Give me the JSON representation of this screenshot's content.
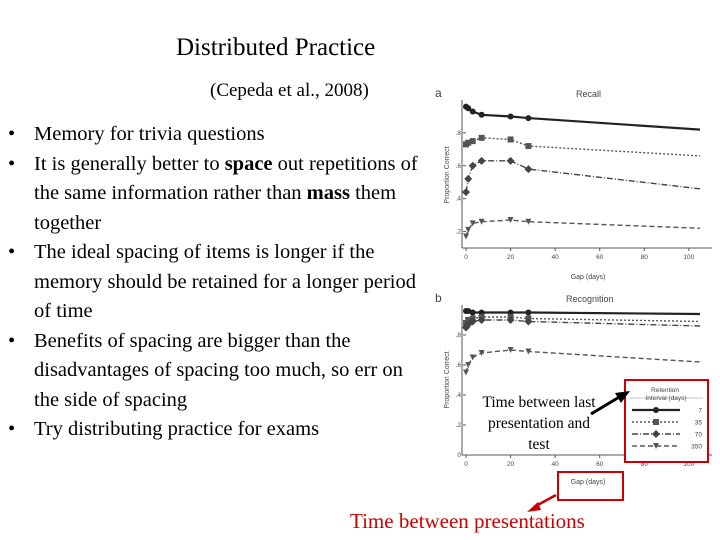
{
  "slide": {
    "title": "Distributed Practice",
    "subtitle": "(Cepeda et al., 2008)",
    "bullet_glyph": "•",
    "bullets": [
      {
        "pre": "Memory for trivia questions",
        "bold": "",
        "post": ""
      },
      {
        "pre": "It is generally better to ",
        "bold": "space",
        "post": " out repetitions of the same information rather than ",
        "bold2": "mass",
        "post2": " them together"
      },
      {
        "pre": "The ideal spacing of items is longer if the memory should be retained for a longer period of time",
        "bold": "",
        "post": ""
      },
      {
        "pre": "Benefits of spacing are bigger than the disadvantages of spacing too much, so err on the side of spacing",
        "bold": "",
        "post": ""
      },
      {
        "pre": "Try distributing practice for exams",
        "bold": "",
        "post": ""
      }
    ],
    "annotation_between": "Time between last presentation and test",
    "annotation_presentations": "Time between presentations"
  },
  "figure": {
    "panel_a_letter": "a",
    "panel_b_letter": "b",
    "panel_a_title": "Recall",
    "panel_b_title": "Recognition",
    "ylabel": "Proportion Correct",
    "xlabel": "Gap (days)",
    "legend_title": "Retention Interval (days)",
    "legend_entries": [
      "7",
      "35",
      "70",
      "350"
    ],
    "accent_color": "#cc0000"
  },
  "chart_data": [
    {
      "type": "line",
      "title": "Recall",
      "xlabel": "Gap (days)",
      "ylabel": "Proportion Correct",
      "x_ticks": [
        "0",
        "20",
        "40",
        "60",
        "80",
        "100"
      ],
      "y_ticks": [
        ".2",
        ".4",
        ".6",
        ".8"
      ],
      "xlim": [
        0,
        105
      ],
      "ylim": [
        0.1,
        1.0
      ],
      "series": [
        {
          "name": "7",
          "x": [
            0,
            1,
            3,
            7,
            20,
            28,
            105
          ],
          "y": [
            0.96,
            0.95,
            0.93,
            0.91,
            0.9,
            0.89,
            0.82
          ]
        },
        {
          "name": "35",
          "x": [
            0,
            1,
            3,
            7,
            20,
            28,
            105
          ],
          "y": [
            0.73,
            0.74,
            0.75,
            0.77,
            0.76,
            0.72,
            0.66
          ]
        },
        {
          "name": "70",
          "x": [
            0,
            1,
            3,
            7,
            20,
            28,
            105
          ],
          "y": [
            0.44,
            0.52,
            0.6,
            0.63,
            0.63,
            0.58,
            0.46
          ]
        },
        {
          "name": "350",
          "x": [
            0,
            1,
            3,
            7,
            20,
            28,
            105
          ],
          "y": [
            0.17,
            0.21,
            0.25,
            0.26,
            0.27,
            0.26,
            0.22
          ]
        }
      ]
    },
    {
      "type": "line",
      "title": "Recognition",
      "xlabel": "Gap (days)",
      "ylabel": "Proportion Correct",
      "x_ticks": [
        "0",
        "20",
        "40",
        "60",
        "80",
        "100"
      ],
      "y_ticks": [
        "0",
        ".2",
        ".4",
        ".6",
        ".8"
      ],
      "xlim": [
        0,
        105
      ],
      "ylim": [
        0,
        1.0
      ],
      "series": [
        {
          "name": "7",
          "x": [
            0,
            1,
            3,
            7,
            20,
            28,
            105
          ],
          "y": [
            0.96,
            0.96,
            0.95,
            0.95,
            0.95,
            0.95,
            0.94
          ]
        },
        {
          "name": "35",
          "x": [
            0,
            1,
            3,
            7,
            20,
            28,
            105
          ],
          "y": [
            0.88,
            0.9,
            0.91,
            0.92,
            0.92,
            0.91,
            0.89
          ]
        },
        {
          "name": "70",
          "x": [
            0,
            1,
            3,
            7,
            20,
            28,
            105
          ],
          "y": [
            0.85,
            0.87,
            0.89,
            0.9,
            0.9,
            0.89,
            0.86
          ]
        },
        {
          "name": "350",
          "x": [
            0,
            1,
            3,
            7,
            20,
            28,
            105
          ],
          "y": [
            0.55,
            0.6,
            0.65,
            0.68,
            0.7,
            0.69,
            0.62
          ]
        }
      ]
    }
  ]
}
